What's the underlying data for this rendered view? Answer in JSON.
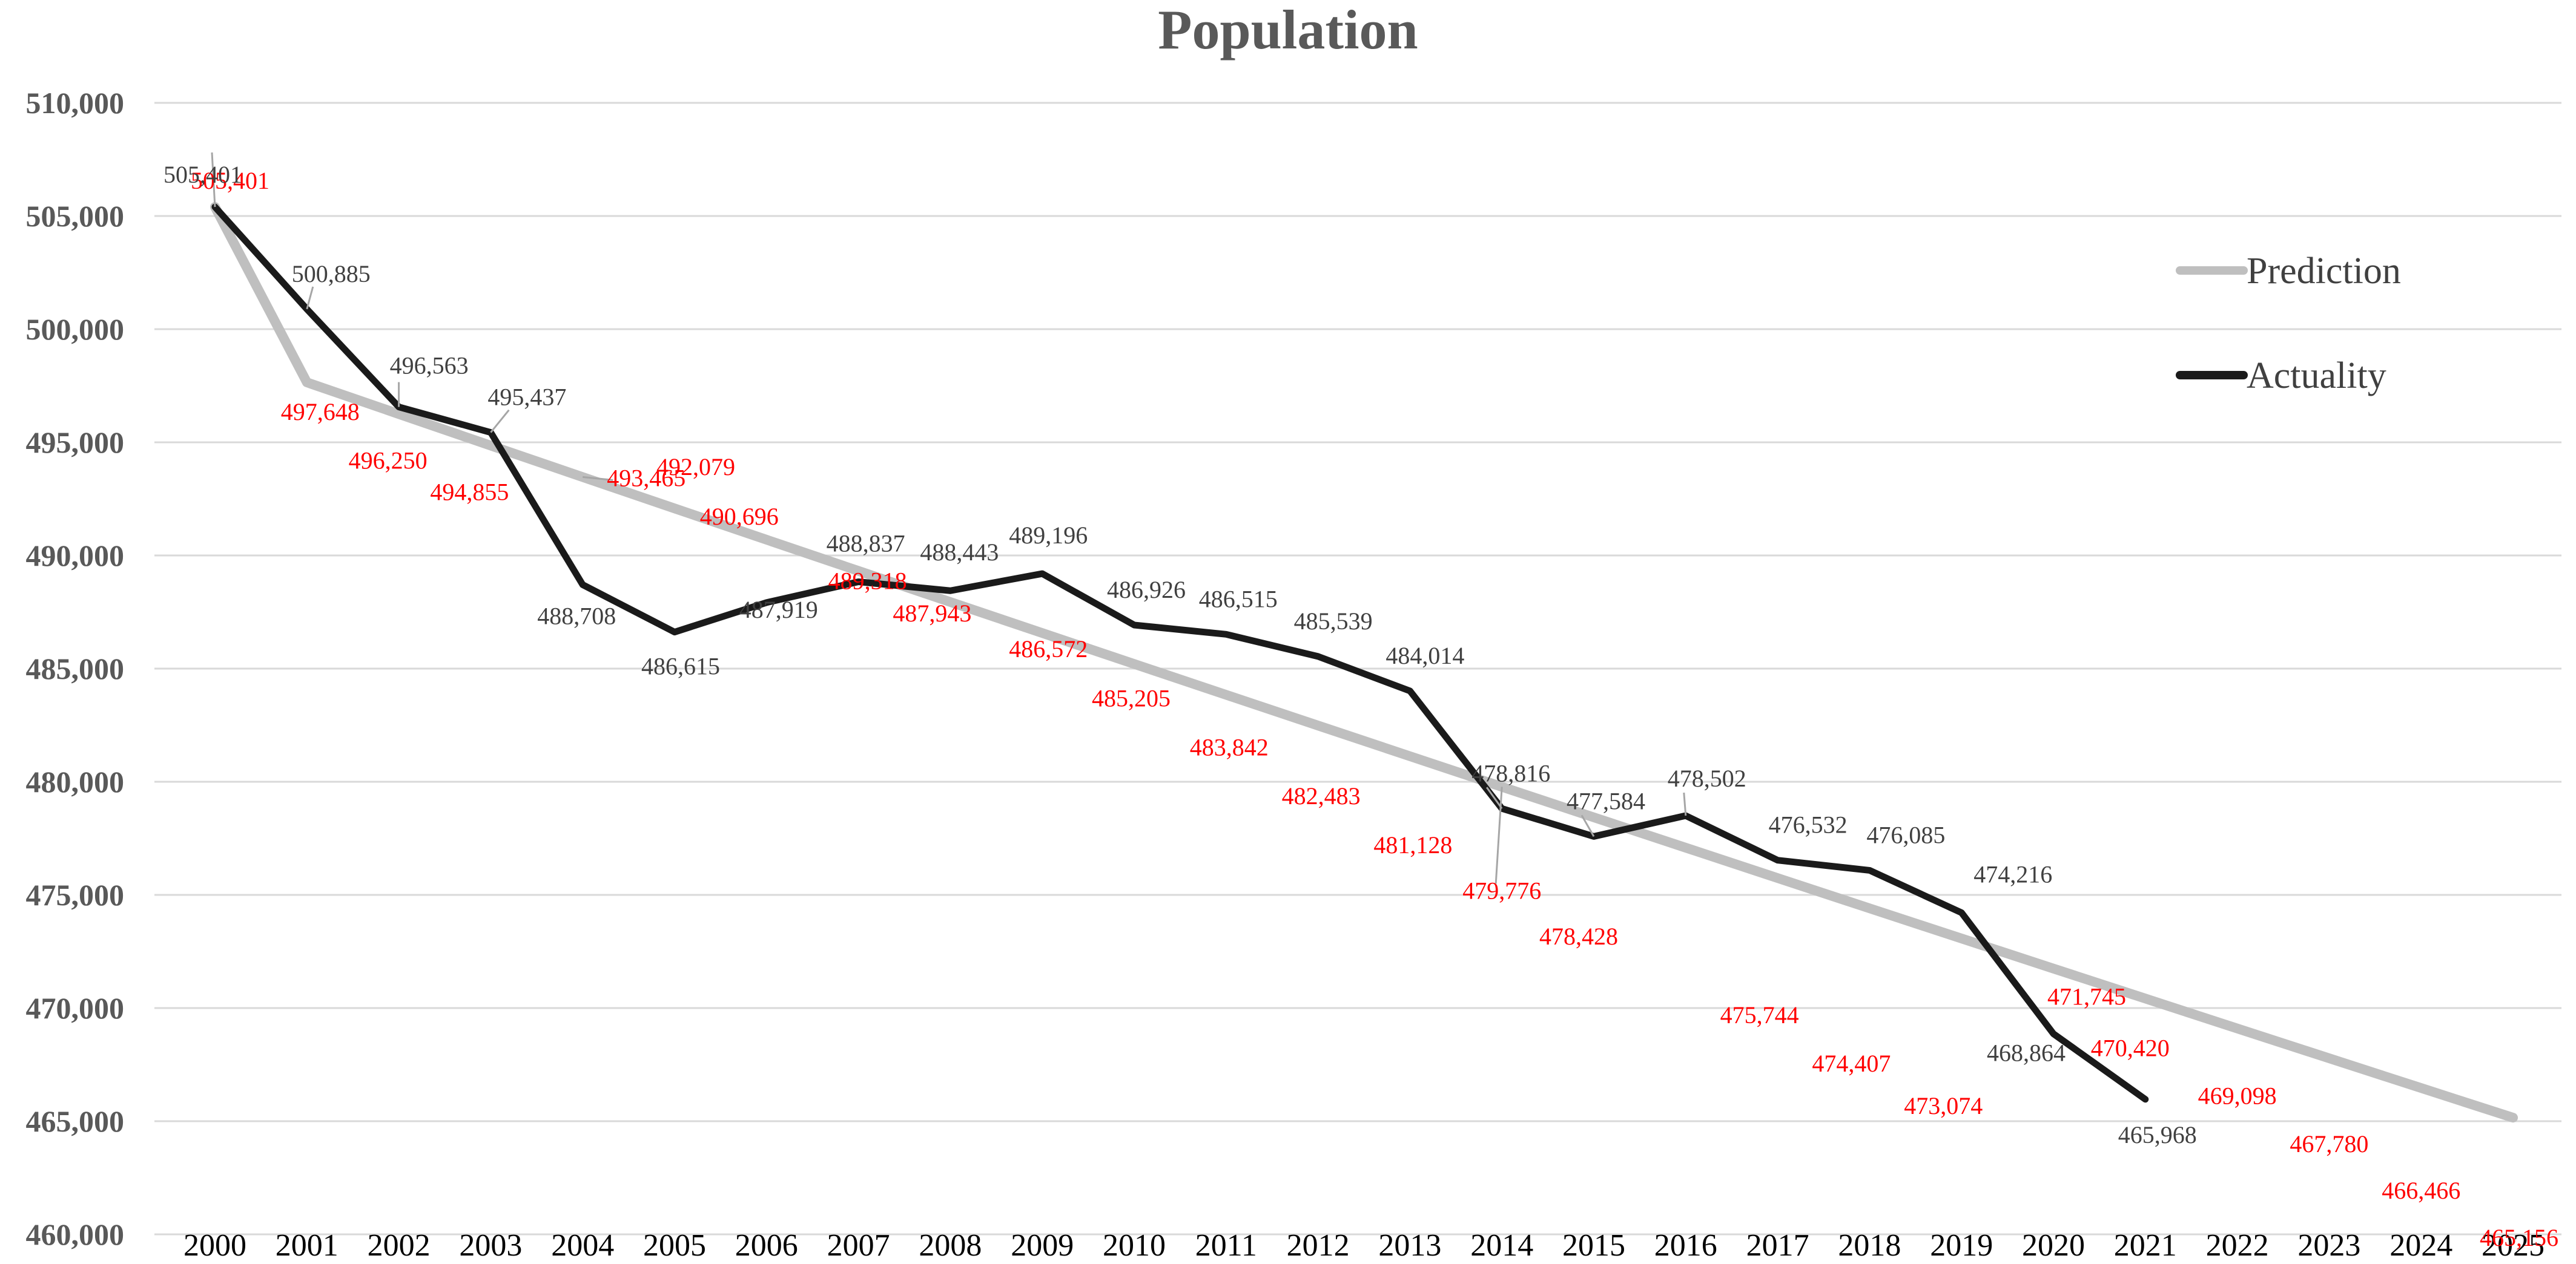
{
  "chart_data": {
    "type": "line",
    "title": "Population",
    "xlabel": "",
    "ylabel": "",
    "ylim": [
      460000,
      510000
    ],
    "ytick_step": 5000,
    "ytick_labels": [
      "460,000",
      "465,000",
      "470,000",
      "475,000",
      "480,000",
      "485,000",
      "490,000",
      "495,000",
      "500,000",
      "505,000",
      "510,000"
    ],
    "categories": [
      "2000",
      "2001",
      "2002",
      "2003",
      "2004",
      "2005",
      "2006",
      "2007",
      "2008",
      "2009",
      "2010",
      "2011",
      "2012",
      "2013",
      "2014",
      "2015",
      "2016",
      "2017",
      "2018",
      "2019",
      "2020",
      "2021",
      "2022",
      "2023",
      "2024",
      "2025"
    ],
    "legend_position": "top-right",
    "grid": true,
    "series": [
      {
        "name": "Prediction",
        "color": "#bfbfbf",
        "label_color": "#ff0000",
        "values": [
          505401,
          497648,
          496250,
          494855,
          493465,
          492079,
          490696,
          489318,
          487943,
          486572,
          485205,
          483842,
          482483,
          481128,
          479776,
          478428,
          null,
          475744,
          474407,
          473074,
          471745,
          470420,
          469098,
          467780,
          466466,
          465156
        ],
        "data_labels": [
          "505,401",
          "497,648",
          "496,250",
          "494,855",
          "493,465",
          "492,079",
          "490,696",
          "489,318",
          "487,943",
          "486,572",
          "485,205",
          "483,842",
          "482,483",
          "481,128",
          "479,776",
          "478,428",
          null,
          "475,744",
          "474,407",
          "473,074",
          "471,745",
          "470,420",
          "469,098",
          "467,780",
          "466,466",
          "465,156"
        ]
      },
      {
        "name": "Actuality",
        "color": "#1a1a1a",
        "label_color": "#404040",
        "values": [
          505401,
          500885,
          496563,
          495437,
          488708,
          486615,
          487919,
          488837,
          488443,
          489196,
          486926,
          486515,
          485539,
          484014,
          478816,
          477584,
          478502,
          476532,
          476085,
          474216,
          468864,
          465968,
          null,
          null,
          null,
          null
        ],
        "data_labels": [
          "505,401",
          "500,885",
          "496,563",
          "495,437",
          "488,708",
          "486,615",
          "487,919",
          "488,837",
          "488,443",
          "489,196",
          "486,926",
          "486,515",
          "485,539",
          "484,014",
          "478,816",
          "477,584",
          "478,502",
          "476,532",
          "476,085",
          "474,216",
          "468,864",
          "465,968",
          null,
          null,
          null,
          null
        ]
      }
    ]
  }
}
